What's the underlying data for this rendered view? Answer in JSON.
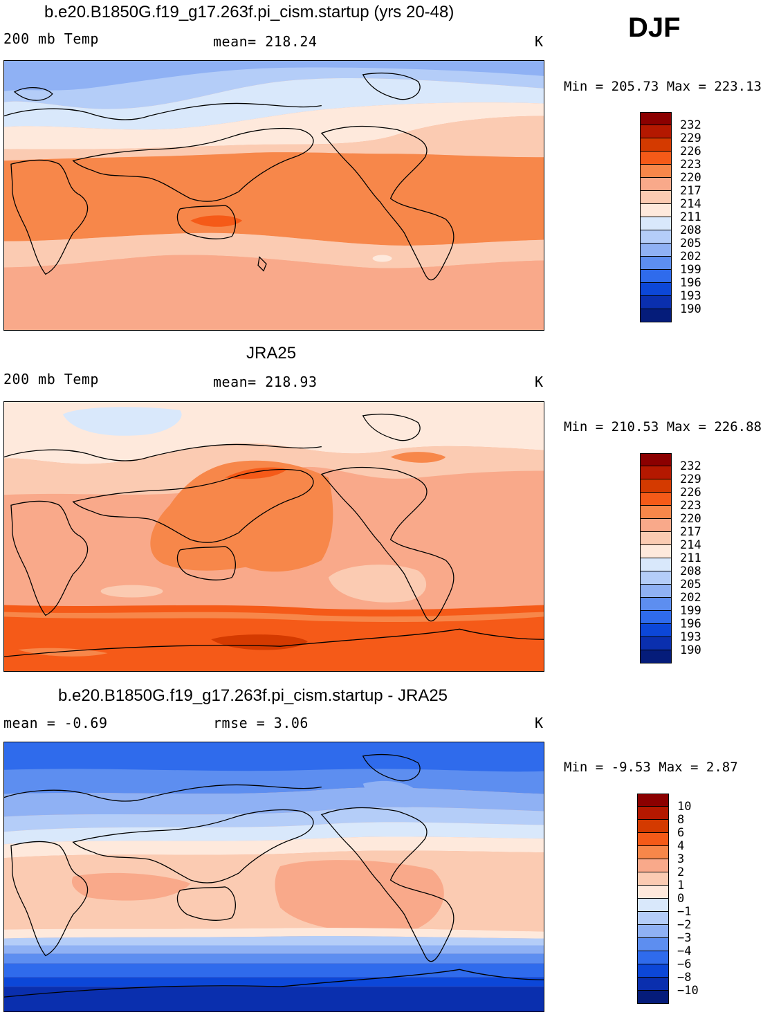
{
  "season": "DJF",
  "panels": [
    {
      "title": "b.e20.B1850G.f19_g17.263f.pi_cism.startup (yrs 20-48)",
      "var_label": "200 mb Temp",
      "stat_label": "mean= 218.24",
      "units": "K",
      "minmax": "Min = 205.73 Max = 223.13",
      "colorbar": {
        "labels": [
          "232",
          "229",
          "226",
          "223",
          "220",
          "217",
          "214",
          "211",
          "208",
          "205",
          "202",
          "199",
          "196",
          "193",
          "190"
        ],
        "colors": [
          "#8b0000",
          "#b41800",
          "#d43a00",
          "#f55a18",
          "#f7874a",
          "#f9a98a",
          "#fbcbb2",
          "#fee9dc",
          "#d9e8fb",
          "#b4cdf8",
          "#8fb1f4",
          "#5d8ef0",
          "#2f6bec",
          "#0c47d8",
          "#0a2fae",
          "#051c7a"
        ]
      }
    },
    {
      "title": "JRA25",
      "var_label": "200 mb Temp",
      "stat_label": "mean= 218.93",
      "units": "K",
      "minmax": "Min = 210.53 Max = 226.88",
      "colorbar": {
        "labels": [
          "232",
          "229",
          "226",
          "223",
          "220",
          "217",
          "214",
          "211",
          "208",
          "205",
          "202",
          "199",
          "196",
          "193",
          "190"
        ],
        "colors": [
          "#8b0000",
          "#b41800",
          "#d43a00",
          "#f55a18",
          "#f7874a",
          "#f9a98a",
          "#fbcbb2",
          "#fee9dc",
          "#d9e8fb",
          "#b4cdf8",
          "#8fb1f4",
          "#5d8ef0",
          "#2f6bec",
          "#0c47d8",
          "#0a2fae",
          "#051c7a"
        ]
      }
    },
    {
      "title": "b.e20.B1850G.f19_g17.263f.pi_cism.startup - JRA25",
      "var_label": "mean =   -0.69",
      "stat_label": "rmse =     3.06",
      "units": "K",
      "minmax": "Min =   -9.53 Max =    2.87",
      "colorbar": {
        "labels": [
          "10",
          "8",
          "6",
          "4",
          "3",
          "2",
          "1",
          "0",
          "-1",
          "-2",
          "-3",
          "-4",
          "-6",
          "-8",
          "-10"
        ],
        "colors": [
          "#8b0000",
          "#b41800",
          "#d43a00",
          "#f55a18",
          "#f7874a",
          "#f9a98a",
          "#fbcbb2",
          "#fee9dc",
          "#d9e8fb",
          "#b4cdf8",
          "#8fb1f4",
          "#5d8ef0",
          "#2f6bec",
          "#0c47d8",
          "#0a2fae",
          "#051c7a"
        ]
      }
    }
  ]
}
